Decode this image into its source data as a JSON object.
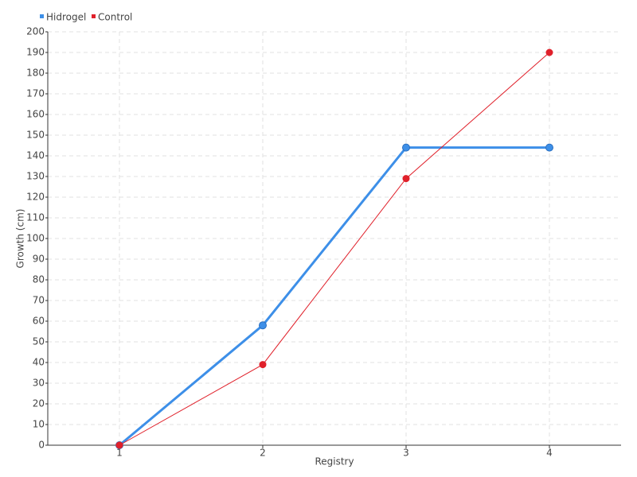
{
  "chart_data": {
    "type": "line",
    "x_label": "Registry",
    "y_label": "Growth (cm)",
    "categories": [
      "1",
      "2",
      "3",
      "4"
    ],
    "series": [
      {
        "name": "Hidrogel",
        "color": "#3d8fe8",
        "values": [
          0,
          58,
          144,
          144
        ]
      },
      {
        "name": "Control",
        "color": "#e0202a",
        "values": [
          0,
          39,
          129,
          190
        ]
      }
    ],
    "ylim": [
      0,
      200
    ],
    "yticks": [
      0,
      10,
      20,
      30,
      40,
      50,
      60,
      70,
      80,
      90,
      100,
      110,
      120,
      130,
      140,
      150,
      160,
      170,
      180,
      190,
      200
    ],
    "grid": true,
    "legend": "top-left"
  }
}
